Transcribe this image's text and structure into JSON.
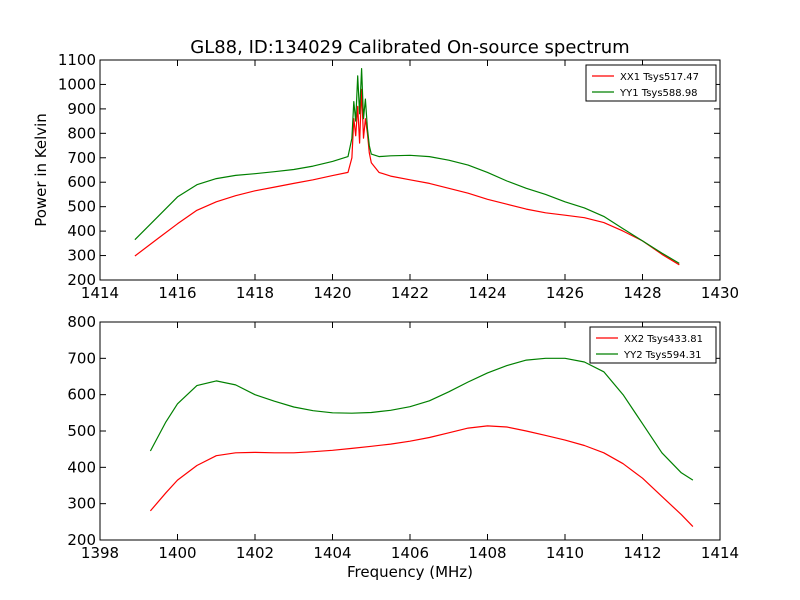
{
  "chart_data": [
    {
      "type": "line",
      "title": "GL88, ID:134029 Calibrated On-source spectrum",
      "xlabel": "",
      "ylabel": "Power in Kelvin",
      "xlim": [
        1414,
        1430
      ],
      "ylim": [
        200,
        1100
      ],
      "xticks": [
        "1414",
        "1416",
        "1418",
        "1420",
        "1422",
        "1424",
        "1426",
        "1428",
        "1430"
      ],
      "yticks": [
        "200",
        "300",
        "400",
        "500",
        "600",
        "700",
        "800",
        "900",
        "1000",
        "1100"
      ],
      "legend_position": "top-right",
      "series": [
        {
          "name": "XX1 Tsys517.47",
          "color": "#ff0000",
          "x": [
            1414.9,
            1415.5,
            1416.0,
            1416.5,
            1417.0,
            1417.5,
            1418.0,
            1418.5,
            1419.0,
            1419.5,
            1420.0,
            1420.4,
            1420.5,
            1420.55,
            1420.6,
            1420.65,
            1420.7,
            1420.75,
            1420.8,
            1420.85,
            1420.9,
            1420.95,
            1421.0,
            1421.2,
            1421.5,
            1422.0,
            1422.5,
            1423.0,
            1423.5,
            1424.0,
            1424.5,
            1425.0,
            1425.5,
            1426.0,
            1426.5,
            1427.0,
            1427.5,
            1428.0,
            1428.5,
            1428.95
          ],
          "values": [
            298,
            370,
            430,
            485,
            520,
            545,
            565,
            580,
            595,
            610,
            627,
            640,
            700,
            860,
            790,
            910,
            760,
            980,
            780,
            860,
            800,
            720,
            680,
            640,
            625,
            610,
            595,
            575,
            555,
            530,
            510,
            490,
            475,
            465,
            455,
            435,
            400,
            360,
            305,
            262
          ]
        },
        {
          "name": "YY1 Tsys588.98",
          "color": "#008000",
          "x": [
            1414.9,
            1415.5,
            1416.0,
            1416.5,
            1417.0,
            1417.5,
            1418.0,
            1418.5,
            1419.0,
            1419.5,
            1420.0,
            1420.4,
            1420.5,
            1420.55,
            1420.6,
            1420.65,
            1420.7,
            1420.75,
            1420.8,
            1420.85,
            1420.9,
            1420.95,
            1421.0,
            1421.2,
            1421.5,
            1422.0,
            1422.5,
            1423.0,
            1423.5,
            1424.0,
            1424.5,
            1425.0,
            1425.5,
            1426.0,
            1426.5,
            1427.0,
            1427.5,
            1428.0,
            1428.5,
            1428.95
          ],
          "values": [
            365,
            460,
            540,
            590,
            615,
            628,
            635,
            643,
            652,
            666,
            685,
            705,
            780,
            930,
            850,
            1035,
            880,
            1065,
            860,
            940,
            820,
            750,
            715,
            705,
            708,
            710,
            705,
            690,
            670,
            640,
            605,
            575,
            550,
            520,
            495,
            460,
            410,
            360,
            310,
            268
          ]
        }
      ]
    },
    {
      "type": "line",
      "title": "",
      "xlabel": "Frequency (MHz)",
      "ylabel": "",
      "xlim": [
        1398,
        1414
      ],
      "ylim": [
        200,
        800
      ],
      "xticks": [
        "1398",
        "1400",
        "1402",
        "1404",
        "1406",
        "1408",
        "1410",
        "1412",
        "1414"
      ],
      "yticks": [
        "200",
        "300",
        "400",
        "500",
        "600",
        "700",
        "800"
      ],
      "legend_position": "top-right",
      "series": [
        {
          "name": "XX2 Tsys433.81",
          "color": "#ff0000",
          "x": [
            1399.3,
            1399.7,
            1400.0,
            1400.5,
            1401.0,
            1401.5,
            1402.0,
            1402.5,
            1403.0,
            1403.5,
            1404.0,
            1404.5,
            1405.0,
            1405.5,
            1406.0,
            1406.5,
            1407.0,
            1407.5,
            1408.0,
            1408.5,
            1409.0,
            1409.5,
            1410.0,
            1410.5,
            1411.0,
            1411.5,
            1412.0,
            1412.5,
            1413.0,
            1413.3
          ],
          "values": [
            280,
            330,
            365,
            405,
            432,
            440,
            441,
            440,
            440,
            443,
            447,
            452,
            458,
            464,
            472,
            482,
            495,
            508,
            514,
            511,
            500,
            488,
            475,
            460,
            440,
            410,
            370,
            320,
            270,
            237
          ]
        },
        {
          "name": "YY2 Tsys594.31",
          "color": "#008000",
          "x": [
            1399.3,
            1399.7,
            1400.0,
            1400.5,
            1401.0,
            1401.5,
            1402.0,
            1402.5,
            1403.0,
            1403.5,
            1404.0,
            1404.5,
            1405.0,
            1405.5,
            1406.0,
            1406.5,
            1407.0,
            1407.5,
            1408.0,
            1408.5,
            1409.0,
            1409.5,
            1410.0,
            1410.5,
            1411.0,
            1411.5,
            1412.0,
            1412.5,
            1413.0,
            1413.3
          ],
          "values": [
            445,
            525,
            575,
            625,
            638,
            627,
            600,
            582,
            566,
            556,
            550,
            549,
            551,
            557,
            567,
            583,
            608,
            635,
            660,
            680,
            695,
            700,
            700,
            690,
            663,
            600,
            520,
            440,
            385,
            365
          ]
        }
      ]
    }
  ]
}
